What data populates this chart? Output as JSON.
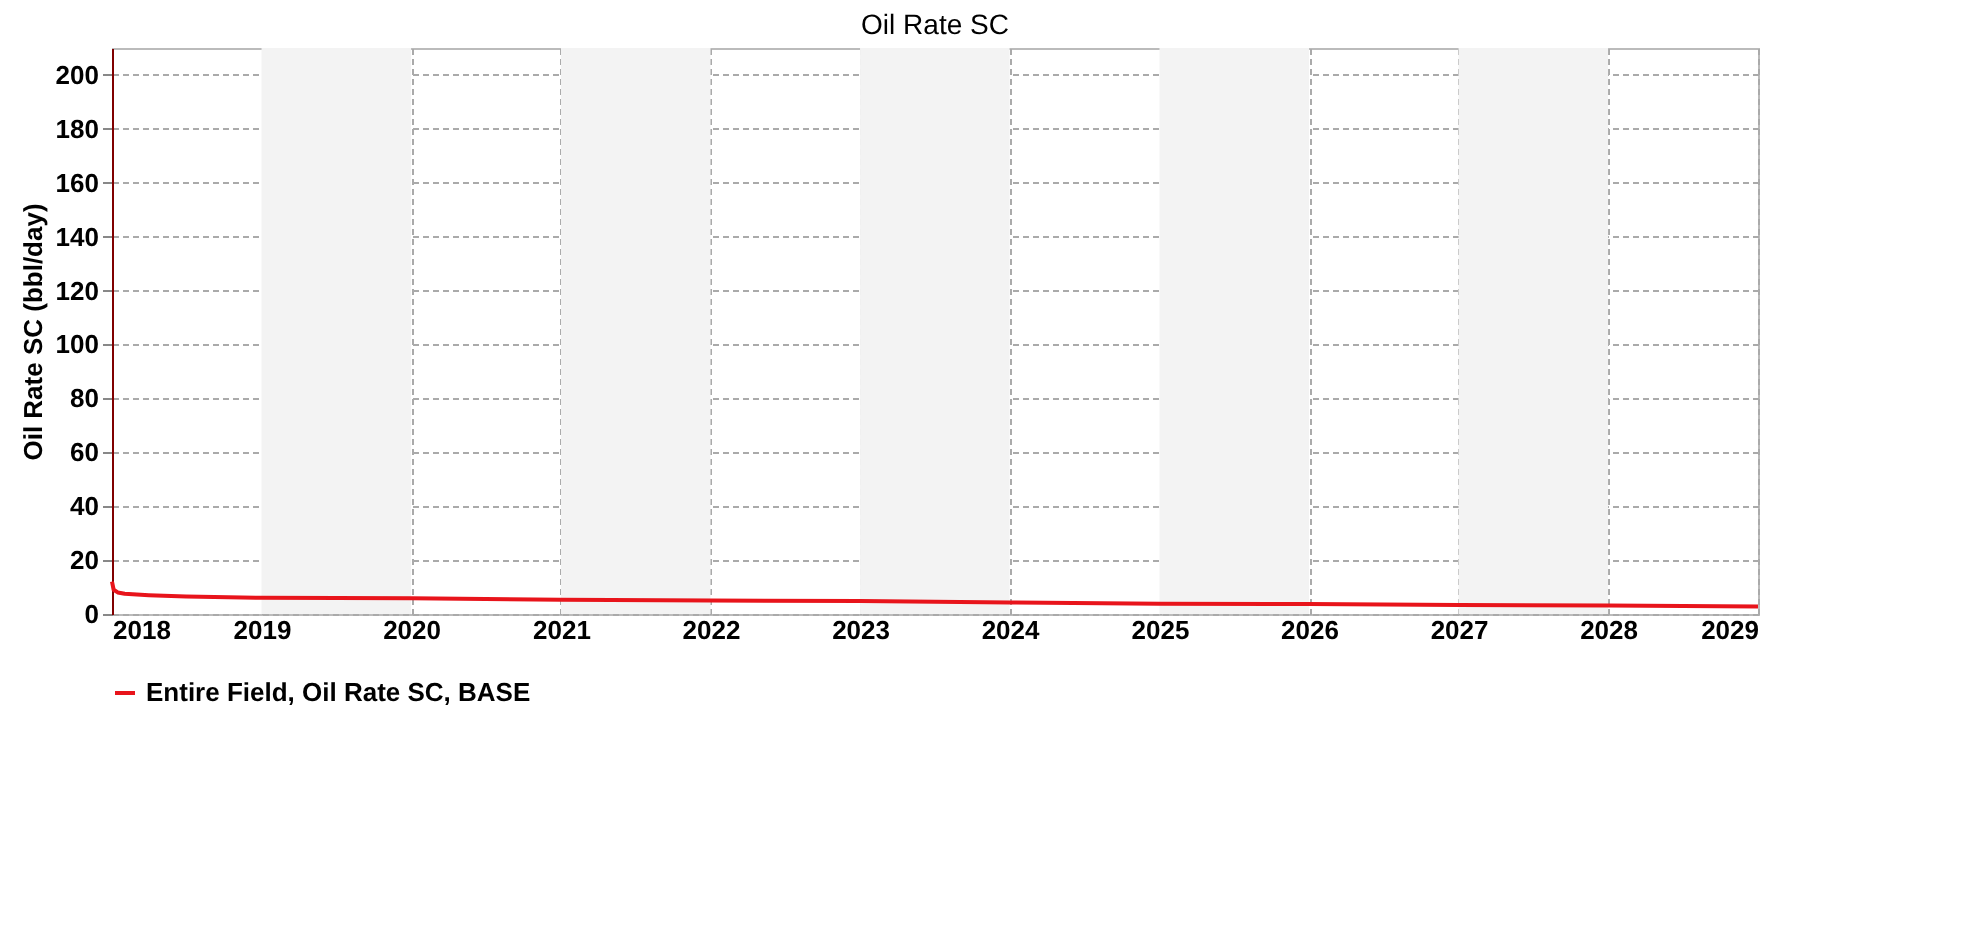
{
  "chart_data": {
    "type": "line",
    "title": "Oil Rate SC",
    "ylabel": "Oil Rate SC (bbl/day)",
    "x": [
      "2018-01-01",
      "2018-01-05",
      "2018-01-15",
      "2018-02-01",
      "2018-04-01",
      "2018-07-01",
      "2019-01-01",
      "2020-01-01",
      "2021-01-01",
      "2022-01-01",
      "2023-01-01",
      "2024-01-01",
      "2025-01-01",
      "2026-01-01",
      "2027-01-01",
      "2028-01-01",
      "2029-01-01"
    ],
    "series": [
      {
        "name": "Entire Field, Oil Rate SC, BASE",
        "color": "#e8141b",
        "values": [
          12,
          9,
          8,
          7.5,
          7,
          6.5,
          6,
          5.8,
          5.3,
          5,
          4.8,
          4.3,
          3.8,
          3.7,
          3.3,
          3.2,
          2.8
        ]
      }
    ],
    "xlim": [
      "2018-01-01",
      "2029-01-01"
    ],
    "xticks": [
      {
        "value": "2018-01-01",
        "label": "2018"
      },
      {
        "value": "2019-01-01",
        "label": "2019"
      },
      {
        "value": "2020-01-01",
        "label": "2020"
      },
      {
        "value": "2021-01-01",
        "label": "2021"
      },
      {
        "value": "2022-01-01",
        "label": "2022"
      },
      {
        "value": "2023-01-01",
        "label": "2023"
      },
      {
        "value": "2024-01-01",
        "label": "2024"
      },
      {
        "value": "2025-01-01",
        "label": "2025"
      },
      {
        "value": "2026-01-01",
        "label": "2026"
      },
      {
        "value": "2027-01-01",
        "label": "2027"
      },
      {
        "value": "2028-01-01",
        "label": "2028"
      },
      {
        "value": "2029-01-01",
        "label": "2029"
      }
    ],
    "ylim": [
      0,
      210
    ],
    "yticks": [
      0,
      20,
      40,
      60,
      80,
      100,
      120,
      140,
      160,
      180,
      200
    ],
    "bands": [
      {
        "axis": "x",
        "from": "2019-01-01",
        "to": "2020-01-01",
        "color": "#f3f3f3"
      },
      {
        "axis": "x",
        "from": "2021-01-01",
        "to": "2022-01-01",
        "color": "#f3f3f3"
      },
      {
        "axis": "x",
        "from": "2023-01-01",
        "to": "2024-01-01",
        "color": "#f3f3f3"
      },
      {
        "axis": "x",
        "from": "2025-01-01",
        "to": "2026-01-01",
        "color": "#f3f3f3"
      },
      {
        "axis": "x",
        "from": "2027-01-01",
        "to": "2028-01-01",
        "color": "#f3f3f3"
      }
    ],
    "grid": true,
    "legend": "bottom",
    "marker": "none",
    "line_style": "solid"
  }
}
